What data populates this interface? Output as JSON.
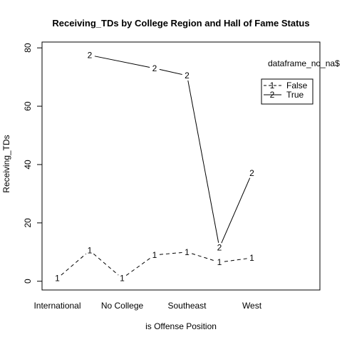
{
  "chart_data": {
    "type": "line",
    "title": "Receiving_TDs by College Region and Hall of Fame Status",
    "xlabel": "is Offense Position",
    "ylabel": "Receiving_TDs",
    "x_tick_labels": [
      "International",
      "No College",
      "Southeast",
      "West"
    ],
    "categories": [
      "c1",
      "c2",
      "c3",
      "c4",
      "c5",
      "c6",
      "c7",
      "c8",
      "c9",
      "c10",
      "c11",
      "c12"
    ],
    "ylim": [
      -3,
      82
    ],
    "yticks": [
      0,
      20,
      40,
      60,
      80
    ],
    "legend_title": "dataframe_no_na$",
    "legend_position": "top-right",
    "series": [
      {
        "name": "False",
        "symbol": "1",
        "dash": true,
        "values": [
          1,
          10.5,
          1,
          9,
          10,
          6.5,
          8,
          null,
          null,
          null,
          null,
          null
        ]
      },
      {
        "name": "True",
        "symbol": "2",
        "dash": false,
        "values": [
          null,
          77.5,
          null,
          73,
          70.5,
          11.5,
          37,
          null,
          null,
          null,
          null,
          null
        ]
      }
    ]
  }
}
